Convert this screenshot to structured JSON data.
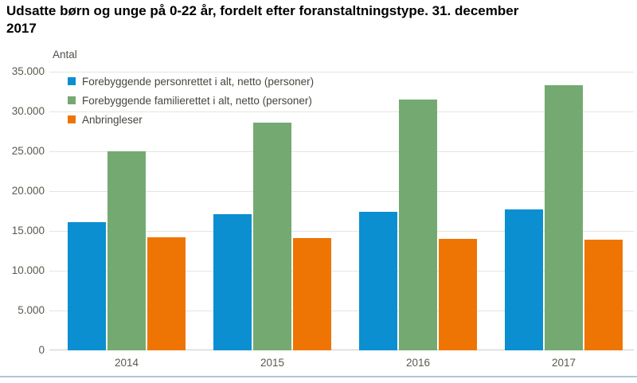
{
  "title": {
    "line1": "Udsatte børn og unge på 0-22 år, fordelt efter foranstaltningstype. 31. december",
    "line2": "2017"
  },
  "chart_data": {
    "type": "bar",
    "title": "Udsatte børn og unge på 0-22 år, fordelt efter foranstaltningstype. 31. december 2017",
    "ylabel": "Antal",
    "xlabel": "",
    "categories": [
      "2014",
      "2015",
      "2016",
      "2017"
    ],
    "series": [
      {
        "name": "Forebyggende personrettet i alt, netto (personer)",
        "color": "#0b8fd0",
        "values": [
          16100,
          17100,
          17400,
          17700
        ]
      },
      {
        "name": "Forebyggende familierettet i alt, netto (personer)",
        "color": "#74aa71",
        "values": [
          25000,
          28600,
          31500,
          33300
        ]
      },
      {
        "name": "Anbringleser",
        "color": "#ee7504",
        "values": [
          14200,
          14100,
          14000,
          13900
        ]
      }
    ],
    "ylim": [
      0,
      35000
    ],
    "ytick_step": 5000,
    "ytick_labels": [
      "0",
      "5.000",
      "10.000",
      "15.000",
      "20.000",
      "25.000",
      "30.000",
      "35.000"
    ],
    "grid": true,
    "legend_position": "top-left",
    "colors": {
      "gridline": "#e4e4de",
      "baseline": "#cdcdc5",
      "bottom_rule": "#b2c6d6",
      "tick_text": "#5a5a50",
      "legend_text": "#46463e"
    }
  }
}
